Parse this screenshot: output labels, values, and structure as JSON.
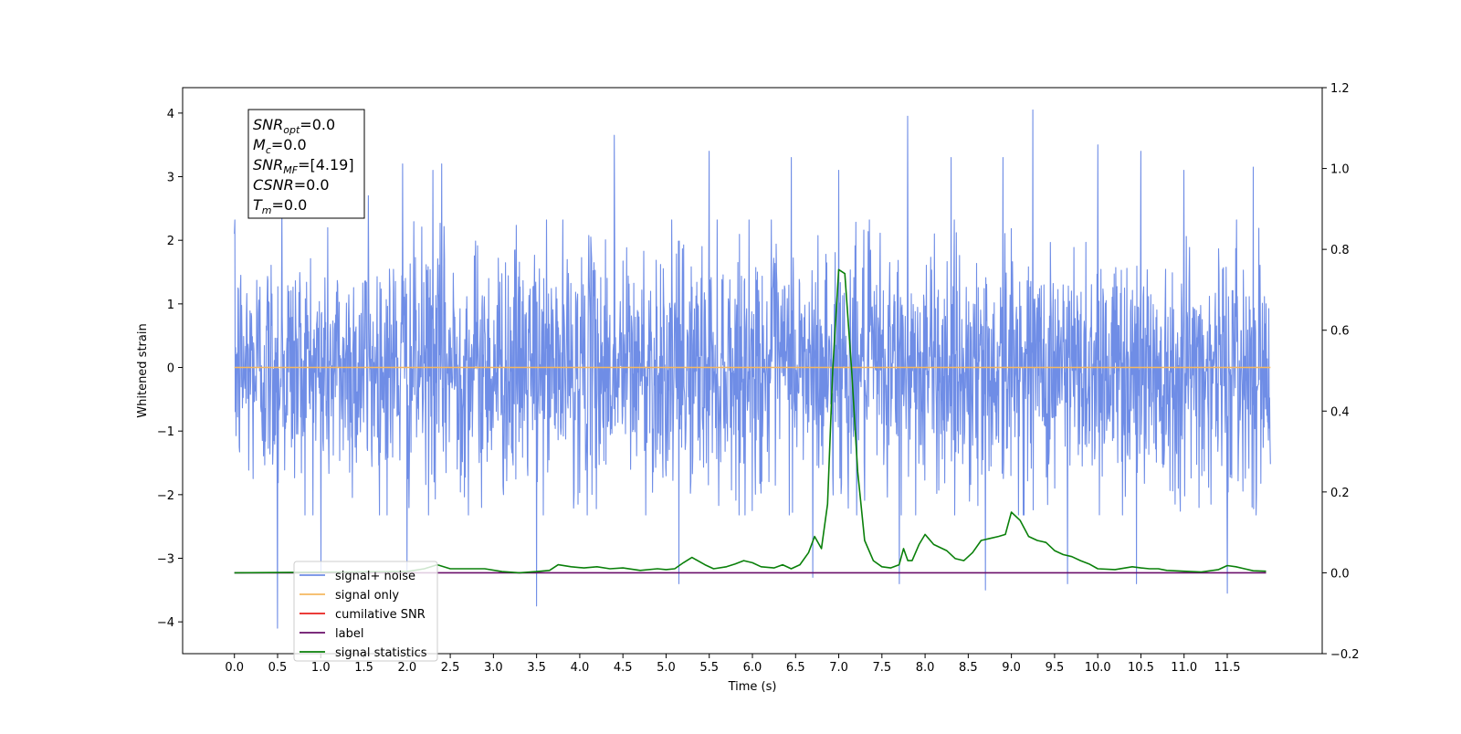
{
  "chart_data": {
    "type": "line",
    "xlabel": "Time (s)",
    "ylabel": "Whitened strain",
    "xlim": [
      -0.6,
      12.6
    ],
    "ylim": [
      -4.5,
      4.4
    ],
    "y2lim": [
      -0.2,
      1.2
    ],
    "x_ticks": [
      0.0,
      0.5,
      1.0,
      1.5,
      2.0,
      2.5,
      3.0,
      3.5,
      4.0,
      4.5,
      5.0,
      5.5,
      6.0,
      6.5,
      7.0,
      7.5,
      8.0,
      8.5,
      9.0,
      9.5,
      10.0,
      10.5,
      11.0,
      11.5
    ],
    "x_tick_labels": [
      "0.0",
      "0.5",
      "1.0",
      "1.5",
      "2.0",
      "2.5",
      "3.0",
      "3.5",
      "4.0",
      "4.5",
      "5.0",
      "5.5",
      "6.0",
      "6.5",
      "7.0",
      "7.5",
      "8.0",
      "8.5",
      "9.0",
      "9.5",
      "10.0",
      "10.5",
      "11.0",
      "11.5"
    ],
    "y_ticks": [
      -4,
      -3,
      -2,
      -1,
      0,
      1,
      2,
      3,
      4
    ],
    "y_tick_labels": [
      "−4",
      "−3",
      "−2",
      "−1",
      "0",
      "1",
      "2",
      "3",
      "4"
    ],
    "y2_ticks": [
      -0.2,
      0.0,
      0.2,
      0.4,
      0.6,
      0.8,
      1.0,
      1.2
    ],
    "y2_tick_labels": [
      "−0.2",
      "0.0",
      "0.2",
      "0.4",
      "0.6",
      "0.8",
      "1.0",
      "1.2"
    ],
    "grid": false,
    "legend_position": "lower-left",
    "series": [
      {
        "name": "signal+ noise",
        "color": "#6f8de6",
        "axis": "left",
        "kind": "noise",
        "x_start": 0.0,
        "x_end": 12.0,
        "typical_range": [
          -1.6,
          1.6
        ],
        "spikes": [
          [
            0.0,
            2.1
          ],
          [
            0.5,
            -4.1
          ],
          [
            0.55,
            2.6
          ],
          [
            1.0,
            -3.2
          ],
          [
            1.55,
            2.7
          ],
          [
            1.95,
            3.2
          ],
          [
            2.0,
            -3.3
          ],
          [
            2.3,
            3.1
          ],
          [
            2.4,
            3.2
          ],
          [
            3.5,
            -3.75
          ],
          [
            4.4,
            3.65
          ],
          [
            5.15,
            -3.4
          ],
          [
            5.5,
            3.4
          ],
          [
            6.45,
            3.3
          ],
          [
            6.7,
            -3.3
          ],
          [
            7.0,
            3.1
          ],
          [
            7.7,
            -3.4
          ],
          [
            7.8,
            3.95
          ],
          [
            8.3,
            3.3
          ],
          [
            8.7,
            -3.5
          ],
          [
            8.9,
            3.3
          ],
          [
            9.25,
            4.05
          ],
          [
            9.65,
            -3.4
          ],
          [
            10.0,
            3.5
          ],
          [
            10.45,
            -3.4
          ],
          [
            10.5,
            3.4
          ],
          [
            11.0,
            3.1
          ],
          [
            11.5,
            -3.55
          ],
          [
            11.8,
            3.15
          ]
        ]
      },
      {
        "name": "signal only",
        "color": "#f5b860",
        "axis": "left",
        "x": [
          0.0,
          12.0
        ],
        "y": [
          0.0,
          0.0
        ]
      },
      {
        "name": "cumilative SNR",
        "color": "#e8211d",
        "axis": "right",
        "x": [],
        "y": []
      },
      {
        "name": "label",
        "color": "#6a0f6a",
        "axis": "right",
        "x": [
          0.0,
          11.95
        ],
        "y": [
          0.0,
          0.0
        ]
      },
      {
        "name": "signal statistics",
        "color": "#0a800a",
        "axis": "right",
        "x": [
          0.0,
          2.0,
          2.2,
          2.35,
          2.5,
          2.7,
          2.9,
          3.1,
          3.3,
          3.5,
          3.65,
          3.75,
          3.9,
          4.05,
          4.2,
          4.35,
          4.5,
          4.7,
          4.9,
          5.0,
          5.1,
          5.2,
          5.3,
          5.45,
          5.55,
          5.7,
          5.8,
          5.9,
          6.0,
          6.1,
          6.25,
          6.35,
          6.45,
          6.55,
          6.65,
          6.72,
          6.8,
          6.87,
          6.93,
          7.0,
          7.07,
          7.15,
          7.22,
          7.3,
          7.4,
          7.5,
          7.6,
          7.7,
          7.75,
          7.8,
          7.85,
          7.93,
          8.0,
          8.1,
          8.25,
          8.35,
          8.45,
          8.55,
          8.65,
          8.75,
          8.85,
          8.93,
          9.0,
          9.1,
          9.2,
          9.3,
          9.4,
          9.5,
          9.6,
          9.7,
          9.8,
          9.9,
          10.0,
          10.2,
          10.4,
          10.5,
          10.6,
          10.7,
          10.8,
          11.0,
          11.2,
          11.4,
          11.5,
          11.6,
          11.7,
          11.8,
          11.95
        ],
        "y": [
          0.0,
          0.003,
          0.01,
          0.02,
          0.01,
          0.01,
          0.01,
          0.003,
          0.0,
          0.003,
          0.006,
          0.02,
          0.015,
          0.012,
          0.015,
          0.01,
          0.012,
          0.006,
          0.01,
          0.008,
          0.01,
          0.025,
          0.038,
          0.02,
          0.01,
          0.015,
          0.022,
          0.03,
          0.025,
          0.015,
          0.012,
          0.02,
          0.01,
          0.02,
          0.05,
          0.09,
          0.06,
          0.17,
          0.5,
          0.75,
          0.74,
          0.5,
          0.25,
          0.08,
          0.03,
          0.015,
          0.012,
          0.02,
          0.06,
          0.03,
          0.03,
          0.07,
          0.095,
          0.07,
          0.055,
          0.035,
          0.03,
          0.05,
          0.08,
          0.085,
          0.09,
          0.095,
          0.15,
          0.13,
          0.09,
          0.08,
          0.075,
          0.055,
          0.045,
          0.04,
          0.03,
          0.022,
          0.01,
          0.008,
          0.015,
          0.012,
          0.01,
          0.01,
          0.006,
          0.004,
          0.002,
          0.008,
          0.018,
          0.015,
          0.01,
          0.005,
          0.004
        ]
      }
    ],
    "annotation_lines": [
      {
        "base": "SNR",
        "sub": "opt",
        "rest": "=0.0"
      },
      {
        "base": "M",
        "sub": "c",
        "rest": "=0.0"
      },
      {
        "base": "SNR",
        "sub": "MF",
        "rest": "=[4.19]"
      },
      {
        "base": "CSNR",
        "sub": "",
        "rest": "=0.0"
      },
      {
        "base": "T",
        "sub": "m",
        "rest": "=0.0"
      }
    ],
    "legend_entries": [
      "signal+ noise",
      "signal only",
      "cumilative SNR",
      "label",
      "signal statistics"
    ]
  }
}
